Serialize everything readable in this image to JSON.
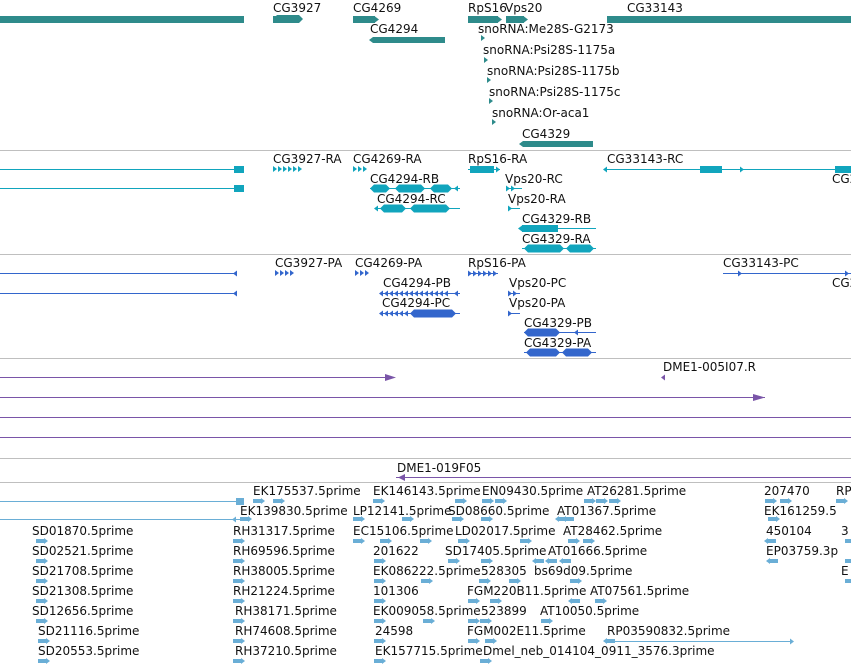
{
  "colors": {
    "gene": "#2e8b8b",
    "mrna": "#11a5bd",
    "protein": "#3366cc",
    "assembly": "#7a55a8",
    "est": "#6aaed6",
    "separator": "#bfbfbf"
  },
  "tracks": {
    "genes": {
      "labels": [
        "CG3927",
        "CG4269",
        "RpS16",
        "Vps20",
        "CG33143",
        "CG4294",
        "snoRNA:Me28S-G2173",
        "snoRNA:Psi28S-1175a",
        "snoRNA:Psi28S-1175b",
        "snoRNA:Psi28S-1175c",
        "snoRNA:Or-aca1",
        "CG4329"
      ]
    },
    "transcripts": {
      "labels": [
        "CG3927-RA",
        "CG4269-RA",
        "RpS16-RA",
        "CG33143-RC",
        "CG4294-RB",
        "Vps20-RC",
        "CG4294-RC",
        "Vps20-RA",
        "CG4329-RB",
        "CG4329-RA",
        "CG2"
      ]
    },
    "proteins": {
      "labels": [
        "CG3927-PA",
        "CG4269-PA",
        "RpS16-PA",
        "CG33143-PC",
        "CG4294-PB",
        "Vps20-PC",
        "CG4294-PC",
        "Vps20-PA",
        "CG4329-PB",
        "CG4329-PA",
        "CG2"
      ]
    },
    "assembly": {
      "labels": [
        "DME1-005I07.R",
        "DME1-019F05"
      ]
    },
    "ests": {
      "labels": [
        "EK175537.5prime",
        "EK146143.5prime",
        "EN09430.5prime",
        "AT26281.5prime",
        "207470",
        "RP",
        "EK139830.5prime",
        "LP12141.5prime",
        "SD08660.5prime",
        "AT01367.5prime",
        "EK161259.5",
        "SD01870.5prime",
        "RH31317.5prime",
        "EC15106.5prime",
        "LD02017.5prime",
        "AT28462.5prime",
        "450104",
        "3",
        "SD02521.5prime",
        "RH69596.5prime",
        "201622",
        "SD17405.5prime",
        "AT01666.5prime",
        "EP03759.3p",
        "SD21708.5prime",
        "RH38005.5prime",
        "EK086222.5prime",
        "528305",
        "bs69d09.5prime",
        "E",
        "SD21308.5prime",
        "RH21224.5prime",
        "101306",
        "FGM220B11.5prime",
        "AT07561.5prime",
        "SD12656.5prime",
        "RH38171.5prime",
        "EK009058.5prime",
        "523899",
        "AT10050.5prime",
        "SD21116.5prime",
        "RH74608.5prime",
        "24598",
        "FGM002E11.5prime",
        "RP03590832.5prime",
        "SD20553.5prime",
        "RH37210.5prime",
        "EK157715.5prime",
        "Dmel_neb_014104_0911_3576.3prime"
      ]
    }
  }
}
